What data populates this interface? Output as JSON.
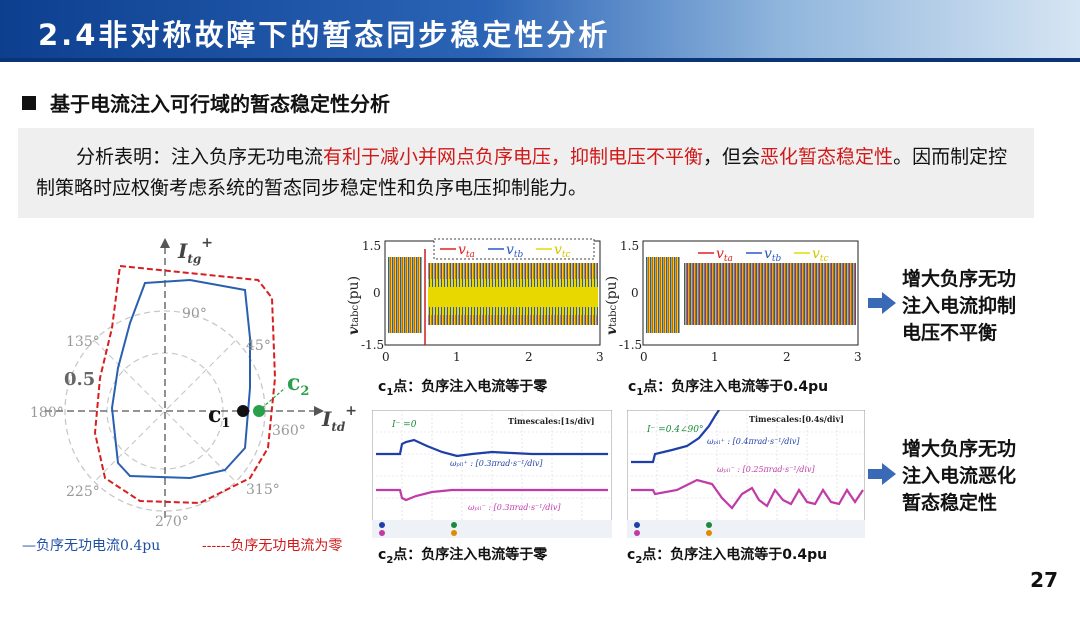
{
  "header": {
    "title": "2.4非对称故障下的暂态同步稳定性分析"
  },
  "subheading": "基于电流注入可行域的暂态稳定性分析",
  "note": {
    "p1": "分析表明：注入负序无功电流",
    "p2": "有利于减小并网点负序电压，抑制电压不平衡",
    "p3": "，但会",
    "p4": "恶化暂态稳定性",
    "p5": "。因而制定控制策略时应权衡考虑系统的暂态同步稳定性和负序电压抑制能力。"
  },
  "circle_plot": {
    "y_axis": "I",
    "y_sub": "tg",
    "y_sup": "+",
    "x_axis": "I",
    "x_sub": "td",
    "x_sup": "+",
    "angles": [
      "90°",
      "45°",
      "135°",
      "180°",
      "360°",
      "225°",
      "270°",
      "315°"
    ],
    "radius_label": "0.5",
    "point_c1": "c",
    "point_c1_sub": "1",
    "point_c2": "c",
    "point_c2_sub": "2",
    "legend_blue": "—负序无功电流0.4pu",
    "legend_red": "------负序无功电流为零"
  },
  "waveform_plots": {
    "ylabel": "v",
    "ylabel_sub": "tabc",
    "ylabel_unit": "(pu)",
    "y_ticks": [
      "1.5",
      "0",
      "-1.5"
    ],
    "x_ticks": [
      "0",
      "1",
      "2",
      "3"
    ],
    "legend": {
      "a": "v",
      "a_sub": "ta",
      "b": "v",
      "b_sub": "tb",
      "c": "v",
      "c_sub": "tc"
    },
    "colors": {
      "a": "#e02020",
      "b": "#2a58c8",
      "c": "#e8d800"
    },
    "caption_left": {
      "pt": "c",
      "sub": "1",
      "text": "点：负序注入电流等于零"
    },
    "caption_right": {
      "pt": "c",
      "sub": "1",
      "text": "点：负序注入电流等于0.4pu"
    }
  },
  "scope_plots": {
    "left": {
      "iref": "I⁻ =0",
      "timescale": "Timescales:[1s/div]",
      "trace1": "ωₚₗₗ⁺ : [0.3πrad·s⁻¹/div]",
      "trace2": "ωₚₗₗ⁻ : [0.3πrad·s⁻¹/div]"
    },
    "right": {
      "iref": "I⁻ =0.4∠90°",
      "timescale": "Timescales:[0.4s/div]",
      "trace1": "ωₚₗₗ⁺ : [0.4πrad·s⁻¹/div]",
      "trace2": "ωₚₗₗ⁻ : [0.25πrad·s⁻¹/div]"
    },
    "caption_left": {
      "pt": "c",
      "sub": "2",
      "text": "点：负序注入电流等于零"
    },
    "caption_right": {
      "pt": "c",
      "sub": "2",
      "text": "点：负序注入电流等于0.4pu"
    }
  },
  "conclusions": {
    "top": [
      "增大负序无功",
      "注入电流抑制",
      "电压不平衡"
    ],
    "bottom": [
      "增大负序无功",
      "注入电流恶化",
      "暂态稳定性"
    ]
  },
  "page_number": "27"
}
